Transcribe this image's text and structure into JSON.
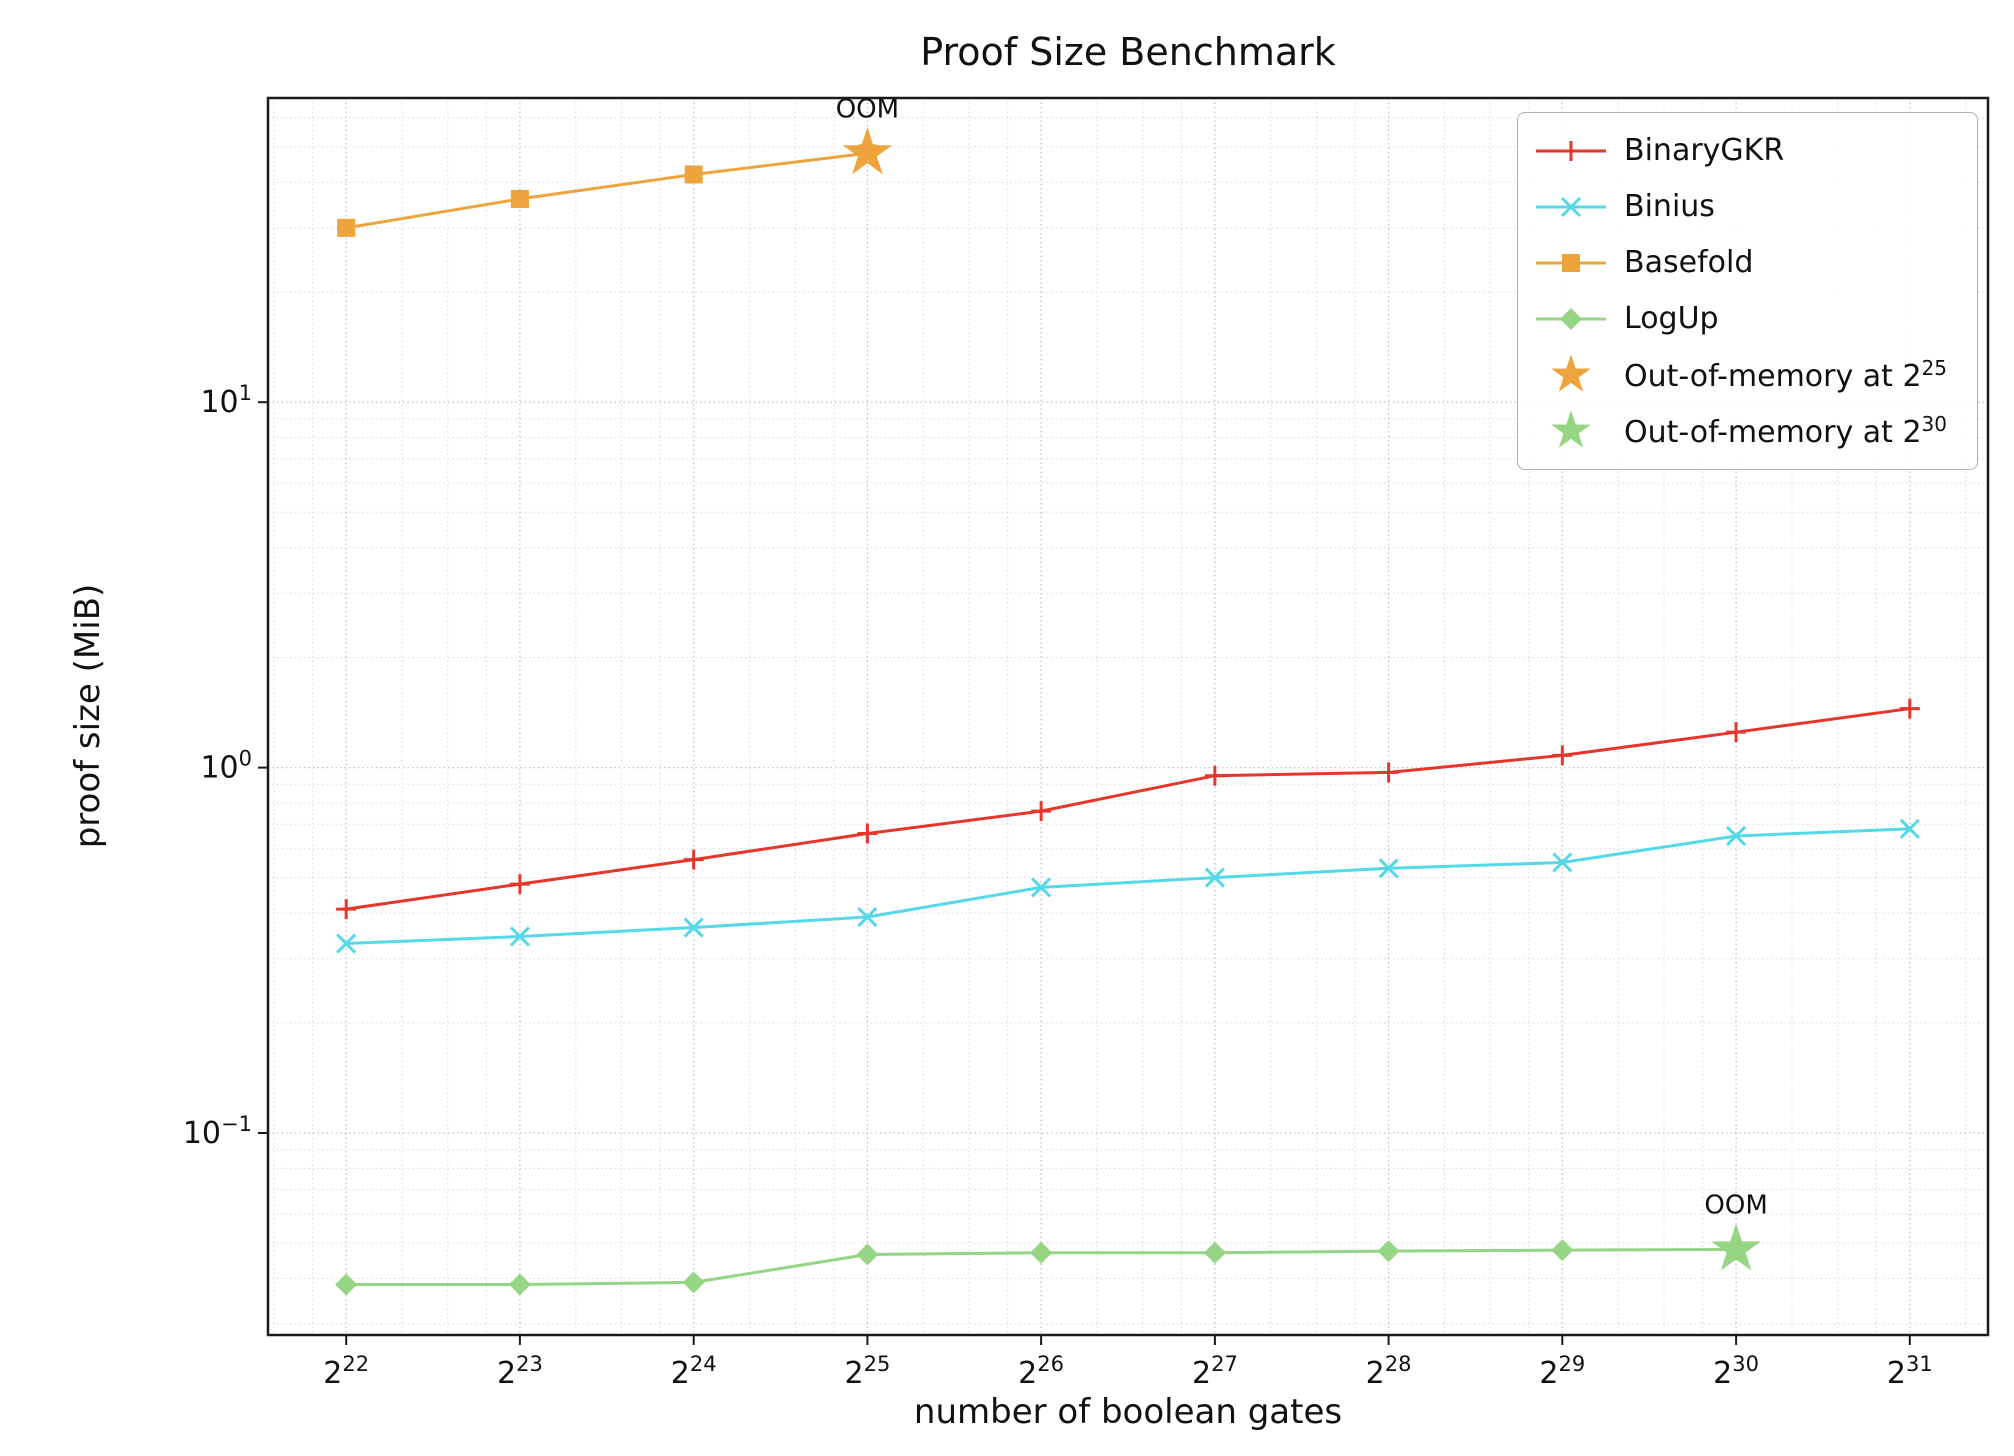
{
  "chart_data": {
    "type": "line",
    "title": "Proof Size Benchmark",
    "xlabel": "number of boolean gates",
    "ylabel": "proof size (MiB)",
    "x_scale": "log2",
    "y_scale": "log10",
    "x_tick_base": "2",
    "x_tick_exponents": [
      22,
      23,
      24,
      25,
      26,
      27,
      28,
      29,
      30,
      31
    ],
    "y_tick_base": "10",
    "y_tick_exponents": [
      -1,
      0,
      1
    ],
    "xlim_exponents": [
      21.55,
      31.45
    ],
    "ylim": [
      0.028,
      68
    ],
    "grid": true,
    "series": [
      {
        "name": "BinaryGKR",
        "color": "#e6352b",
        "marker": "plus",
        "x_exponents": [
          22,
          23,
          24,
          25,
          26,
          27,
          28,
          29,
          30,
          31
        ],
        "values": [
          0.41,
          0.48,
          0.56,
          0.66,
          0.76,
          0.95,
          0.97,
          1.08,
          1.25,
          1.45
        ]
      },
      {
        "name": "Binius",
        "color": "#55d8e8",
        "marker": "x",
        "x_exponents": [
          22,
          23,
          24,
          25,
          26,
          27,
          28,
          29,
          30,
          31
        ],
        "values": [
          0.33,
          0.345,
          0.365,
          0.39,
          0.47,
          0.5,
          0.53,
          0.55,
          0.65,
          0.68
        ]
      },
      {
        "name": "Basefold",
        "color": "#eda43c",
        "marker": "square",
        "x_exponents": [
          22,
          23,
          24,
          25
        ],
        "values": [
          30,
          36,
          42,
          48
        ]
      },
      {
        "name": "LogUp",
        "color": "#96d583",
        "marker": "diamond",
        "x_exponents": [
          22,
          23,
          24,
          25,
          26,
          27,
          28,
          29,
          30
        ],
        "values": [
          0.0385,
          0.0385,
          0.039,
          0.0465,
          0.047,
          0.047,
          0.0475,
          0.0478,
          0.048
        ]
      }
    ],
    "oom_annotations": [
      {
        "text": "OOM",
        "x_exponent": 25,
        "value": 48,
        "color": "#eda43c"
      },
      {
        "text": "OOM",
        "x_exponent": 30,
        "value": 0.048,
        "color": "#96d583"
      }
    ],
    "legend": {
      "position": "upper right",
      "entries": [
        {
          "label": "BinaryGKR",
          "color": "#e6352b",
          "marker": "plus",
          "line": true
        },
        {
          "label": "Binius",
          "color": "#55d8e8",
          "marker": "x",
          "line": true
        },
        {
          "label": "Basefold",
          "color": "#eda43c",
          "marker": "square",
          "line": true
        },
        {
          "label": "LogUp",
          "color": "#96d583",
          "marker": "diamond",
          "line": true
        },
        {
          "label": "Out-of-memory at 2",
          "sup": "25",
          "color": "#eda43c",
          "marker": "star",
          "line": false
        },
        {
          "label": "Out-of-memory at 2",
          "sup": "30",
          "color": "#96d583",
          "marker": "star",
          "line": false
        }
      ]
    }
  }
}
